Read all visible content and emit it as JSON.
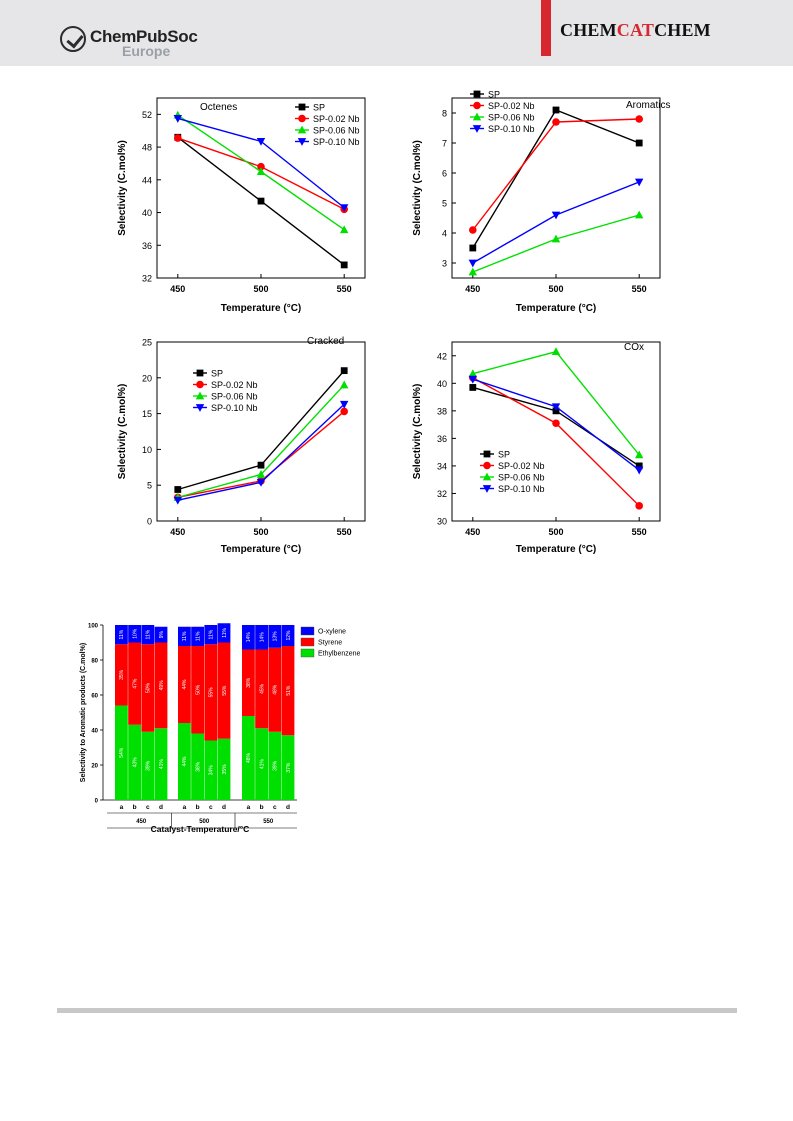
{
  "header": {
    "brand_name": "ChemPubSoc",
    "brand_region": "Europe",
    "journal_parts": [
      "CHEM",
      "CAT",
      "CHEM"
    ],
    "accent_color": "#d7282f"
  },
  "chart_data": [
    {
      "id": "octenes",
      "type": "line",
      "title": "Octenes",
      "xlabel": "Temperature (°C)",
      "ylabel": "Selectivity (C.mol%)",
      "x": [
        450,
        500,
        550
      ],
      "xlim": [
        450,
        550
      ],
      "ylim": [
        32,
        54
      ],
      "yticks": [
        32,
        36,
        40,
        44,
        48,
        52
      ],
      "legend_position": "top-right",
      "series": [
        {
          "name": "SP",
          "color": "#000000",
          "marker": "square",
          "values": [
            49.2,
            41.4,
            33.6
          ]
        },
        {
          "name": "SP-0.02 Nb",
          "color": "#ff0000",
          "marker": "circle",
          "values": [
            49.1,
            45.6,
            40.4
          ]
        },
        {
          "name": "SP-0.06 Nb",
          "color": "#00e000",
          "marker": "triangle-up",
          "values": [
            51.9,
            45.0,
            37.9
          ]
        },
        {
          "name": "SP-0.10 Nb",
          "color": "#0000ff",
          "marker": "triangle-down",
          "values": [
            51.5,
            48.7,
            40.6
          ]
        }
      ]
    },
    {
      "id": "aromatics",
      "type": "line",
      "title": "Aromatics",
      "xlabel": "Temperature (°C)",
      "ylabel": "Selectivity (C.mol%)",
      "x": [
        450,
        500,
        550
      ],
      "xlim": [
        450,
        550
      ],
      "ylim": [
        2.5,
        8.5
      ],
      "yticks": [
        3,
        4,
        5,
        6,
        7,
        8
      ],
      "legend_position": "top-left",
      "series": [
        {
          "name": "SP",
          "color": "#000000",
          "marker": "square",
          "values": [
            3.5,
            8.1,
            7.0
          ]
        },
        {
          "name": "SP-0.02 Nb",
          "color": "#ff0000",
          "marker": "circle",
          "values": [
            4.1,
            7.7,
            7.8
          ]
        },
        {
          "name": "SP-0.06 Nb",
          "color": "#00e000",
          "marker": "triangle-up",
          "values": [
            2.7,
            3.8,
            4.6
          ]
        },
        {
          "name": "SP-0.10 Nb",
          "color": "#0000ff",
          "marker": "triangle-down",
          "values": [
            3.0,
            4.6,
            5.7
          ]
        }
      ]
    },
    {
      "id": "cracked",
      "type": "line",
      "title": "Cracked",
      "xlabel": "Temperature (°C)",
      "ylabel": "Selectivity (C.mol%)",
      "x": [
        450,
        500,
        550
      ],
      "xlim": [
        450,
        550
      ],
      "ylim": [
        0,
        25
      ],
      "yticks": [
        0,
        5,
        10,
        15,
        20,
        25
      ],
      "legend_position": "center-left",
      "series": [
        {
          "name": "SP",
          "color": "#000000",
          "marker": "square",
          "values": [
            4.4,
            7.8,
            21.0
          ]
        },
        {
          "name": "SP-0.02 Nb",
          "color": "#ff0000",
          "marker": "circle",
          "values": [
            3.3,
            5.6,
            15.3
          ]
        },
        {
          "name": "SP-0.06 Nb",
          "color": "#00e000",
          "marker": "triangle-up",
          "values": [
            3.3,
            6.5,
            19.0
          ]
        },
        {
          "name": "SP-0.10 Nb",
          "color": "#0000ff",
          "marker": "triangle-down",
          "values": [
            2.9,
            5.4,
            16.3
          ]
        }
      ]
    },
    {
      "id": "cox",
      "type": "line",
      "title": "COx",
      "xlabel": "Temperature (°C)",
      "ylabel": "Selectivity (C.mol%)",
      "x": [
        450,
        500,
        550
      ],
      "xlim": [
        450,
        550
      ],
      "ylim": [
        30,
        43
      ],
      "yticks": [
        30,
        32,
        34,
        36,
        38,
        40,
        42
      ],
      "legend_position": "bottom-left",
      "series": [
        {
          "name": "SP",
          "color": "#000000",
          "marker": "square",
          "values": [
            39.7,
            38.0,
            34.0
          ]
        },
        {
          "name": "SP-0.02 Nb",
          "color": "#ff0000",
          "marker": "circle",
          "values": [
            40.4,
            37.1,
            31.1
          ]
        },
        {
          "name": "SP-0.06 Nb",
          "color": "#00e000",
          "marker": "triangle-up",
          "values": [
            40.7,
            42.3,
            34.8
          ]
        },
        {
          "name": "SP-0.10 Nb",
          "color": "#0000ff",
          "marker": "triangle-down",
          "values": [
            40.3,
            38.3,
            33.7
          ]
        }
      ]
    },
    {
      "id": "aromatic-distribution",
      "type": "bar",
      "stacked": true,
      "percent": true,
      "xlabel": "Catalyst-Temperature/°C",
      "ylabel": "Selectivity to Aromatic products (C.mol%)",
      "ylim": [
        0,
        100
      ],
      "yticks": [
        0,
        20,
        40,
        60,
        80,
        100
      ],
      "groups": [
        "450",
        "500",
        "550"
      ],
      "categories": [
        "a",
        "b",
        "c",
        "d"
      ],
      "legend_position": "top-right",
      "series": [
        {
          "name": "Ethylbenzene",
          "color": "#00e000",
          "values": [
            [
              54,
              43,
              39,
              41
            ],
            [
              44,
              38,
              34,
              35
            ],
            [
              48,
              41,
              39,
              37
            ]
          ]
        },
        {
          "name": "Styrene",
          "color": "#ff0000",
          "values": [
            [
              35,
              47,
              50,
              49
            ],
            [
              44,
              50,
              55,
              55
            ],
            [
              38,
              45,
              48,
              51
            ]
          ]
        },
        {
          "name": "O-xylene",
          "color": "#0000ff",
          "values": [
            [
              11,
              10,
              11,
              9
            ],
            [
              11,
              11,
              11,
              11
            ],
            [
              14,
              14,
              13,
              12
            ]
          ]
        }
      ]
    }
  ]
}
